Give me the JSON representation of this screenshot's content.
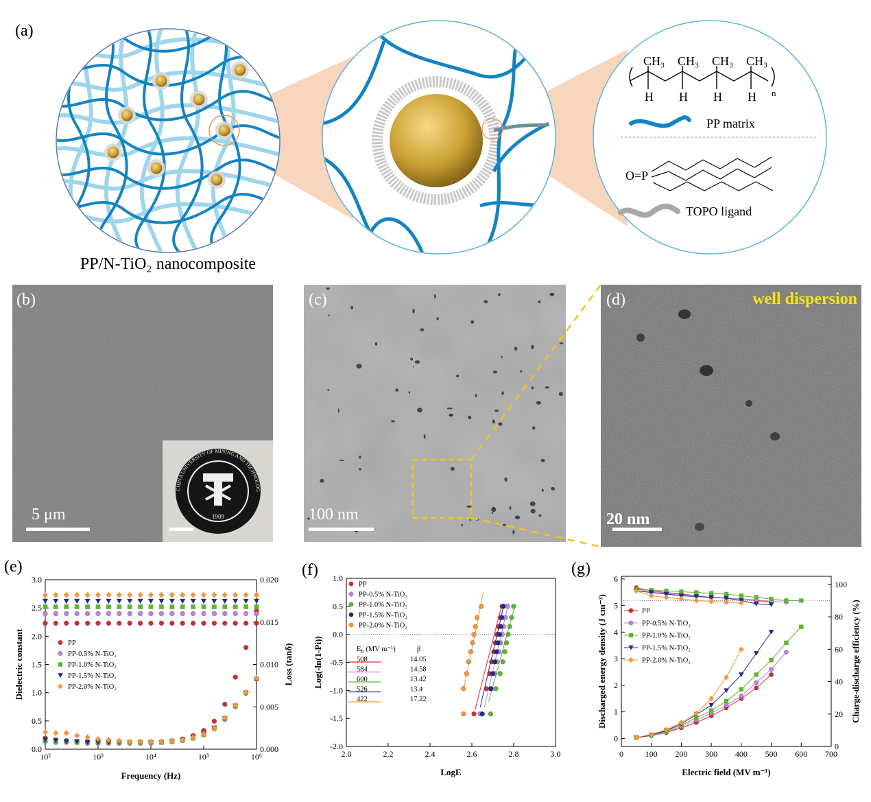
{
  "figure": {
    "a": {
      "label": "(a)",
      "caption": "PP/N-TiO₂ nanocomposite",
      "methyl": [
        "CH₃",
        "CH₃",
        "CH₃",
        "CH₃"
      ],
      "hydrogen": [
        "H",
        "H",
        "H",
        "H"
      ],
      "repeat": "n",
      "matrix": "PP matrix",
      "phosphine": "O=P",
      "ligand": "TOPO ligand"
    },
    "b": {
      "label": "(b)",
      "scale": "5 μm",
      "inset_year": "1909",
      "inset_name": "CHINA UNIVERSITY OF MINING AND TECHNOLOGY"
    },
    "c": {
      "label": "(c)",
      "scale": "100 nm"
    },
    "d": {
      "label": "(d)",
      "scale": "20 nm",
      "note": "well dispersion"
    }
  },
  "chart_data": [
    {
      "type": "scatter",
      "label": "(e)",
      "xlabel": "Frequency (Hz)",
      "ylabel": "Dielectric constant",
      "y2label": "Loss (tanδ)",
      "xscale": "log",
      "legend": "center left",
      "x": [
        100,
        158,
        251,
        398,
        631,
        1000,
        1585,
        2512,
        3981,
        6310,
        10000,
        15849,
        25119,
        39811,
        63096,
        100000,
        158489,
        251189,
        398107,
        630957,
        1000000
      ],
      "xlim": [
        100,
        1000000
      ],
      "xticks": [
        {
          "value": 100,
          "label": "10²"
        },
        {
          "value": 1000,
          "label": "10³"
        },
        {
          "value": 10000,
          "label": "10⁴"
        },
        {
          "value": 100000,
          "label": "10⁵"
        },
        {
          "value": 1000000,
          "label": "10⁶"
        }
      ],
      "ylim": [
        0,
        3
      ],
      "yticks": [
        {
          "value": 0,
          "label": "0.0"
        },
        0.5,
        {
          "value": 1,
          "label": "1.0"
        },
        1.5,
        {
          "value": 2,
          "label": "2.0"
        },
        2.5,
        {
          "value": 3,
          "label": "3.0"
        }
      ],
      "y2lim": [
        0,
        0.02
      ],
      "y2ticks": [
        {
          "value": 0,
          "label": "0.000"
        },
        0.005,
        {
          "value": 0.01,
          "label": "0.010"
        },
        0.015,
        {
          "value": 0.02,
          "label": "0.020"
        }
      ],
      "series": [
        {
          "name": "PP",
          "color": "#d92b2b",
          "marker": "circle",
          "values": [
            2.23,
            2.23,
            2.23,
            2.23,
            2.23,
            2.23,
            2.23,
            2.23,
            2.23,
            2.23,
            2.23,
            2.23,
            2.23,
            2.23,
            2.23,
            2.23,
            2.23,
            2.23,
            2.23,
            2.23,
            2.23
          ],
          "y2_values": [
            0.0013,
            0.0011,
            0.001,
            0.0009,
            0.0009,
            0.0008,
            0.0008,
            0.0008,
            0.0008,
            0.0008,
            0.0008,
            0.0009,
            0.001,
            0.0012,
            0.0016,
            0.0022,
            0.0033,
            0.0053,
            0.0085,
            0.012,
            0.0163
          ]
        },
        {
          "name": "PP-0.5% N-TiO₂",
          "color": "#c27ee8",
          "marker": "circle",
          "values": [
            2.4,
            2.4,
            2.4,
            2.4,
            2.4,
            2.4,
            2.4,
            2.4,
            2.4,
            2.4,
            2.4,
            2.4,
            2.4,
            2.4,
            2.4,
            2.4,
            2.4,
            2.4,
            2.4,
            2.4,
            2.4
          ],
          "y2_values": [
            0.0009,
            0.0008,
            0.0008,
            0.0008,
            0.0007,
            0.0007,
            0.0007,
            0.0007,
            0.0007,
            0.0007,
            0.0007,
            0.0008,
            0.0009,
            0.001,
            0.0013,
            0.0017,
            0.0024,
            0.0035,
            0.005,
            0.0066,
            0.0083
          ]
        },
        {
          "name": "PP-1.0% N-TiO₂",
          "color": "#5fb530",
          "marker": "square",
          "values": [
            2.52,
            2.52,
            2.52,
            2.52,
            2.52,
            2.52,
            2.52,
            2.52,
            2.52,
            2.52,
            2.52,
            2.52,
            2.52,
            2.52,
            2.52,
            2.52,
            2.52,
            2.52,
            2.52,
            2.52,
            2.52
          ],
          "y2_values": [
            0.001,
            0.0009,
            0.0009,
            0.0008,
            0.0008,
            0.0008,
            0.0008,
            0.0008,
            0.0008,
            0.0008,
            0.0008,
            0.0008,
            0.0009,
            0.0011,
            0.0013,
            0.0017,
            0.0025,
            0.0036,
            0.0051,
            0.0067,
            0.0083
          ]
        },
        {
          "name": "PP-1.5% N-TiO₂",
          "color": "#1c2c8c",
          "marker": "triangle-down",
          "values": [
            2.62,
            2.62,
            2.62,
            2.62,
            2.62,
            2.62,
            2.62,
            2.62,
            2.62,
            2.62,
            2.62,
            2.62,
            2.62,
            2.62,
            2.62,
            2.62,
            2.62,
            2.62,
            2.62,
            2.62,
            2.62
          ],
          "y2_values": [
            0.0011,
            0.001,
            0.0009,
            0.0009,
            0.0008,
            0.0008,
            0.0008,
            0.0008,
            0.0008,
            0.0008,
            0.0008,
            0.0008,
            0.0009,
            0.0011,
            0.0014,
            0.0018,
            0.0025,
            0.0036,
            0.0051,
            0.0066,
            0.0082
          ]
        },
        {
          "name": "PP-2.0% N-TiO₂",
          "color": "#f5963a",
          "marker": "diamond",
          "values": [
            2.73,
            2.73,
            2.73,
            2.73,
            2.73,
            2.73,
            2.73,
            2.73,
            2.73,
            2.73,
            2.73,
            2.73,
            2.73,
            2.73,
            2.73,
            2.73,
            2.73,
            2.73,
            2.73,
            2.73,
            2.73
          ],
          "y2_values": [
            0.002,
            0.0019,
            0.0019,
            0.0016,
            0.0014,
            0.0012,
            0.0011,
            0.001,
            0.0009,
            0.0009,
            0.0009,
            0.0009,
            0.001,
            0.0011,
            0.0014,
            0.0018,
            0.0025,
            0.0037,
            0.0052,
            0.0067,
            0.0084
          ]
        }
      ]
    },
    {
      "type": "scatter",
      "label": "(f)",
      "xlabel": "LogE",
      "ylabel": "Log(-ln(1-Pi))",
      "legend": "upper left",
      "reference_y": 0,
      "xlim": [
        2,
        3
      ],
      "xticks": [
        {
          "value": 2,
          "label": "2.0"
        },
        2.2,
        2.4,
        2.6,
        2.8,
        {
          "value": 3,
          "label": "3.0"
        }
      ],
      "ylim": [
        -2,
        1
      ],
      "yticks": [
        {
          "value": -2,
          "label": "-2.0"
        },
        -1.5,
        {
          "value": -1,
          "label": "-1.0"
        },
        -0.5,
        {
          "value": 0,
          "label": "0.0"
        },
        0.5,
        {
          "value": 1,
          "label": "1.0"
        }
      ],
      "eb_header": {
        "symbol": "E",
        "subscript": "b",
        "unit": "(MV m⁻¹)"
      },
      "beta_header": "β",
      "series": [
        {
          "name": "PP",
          "color": "#d92b2b",
          "marker": "circle",
          "x": [
            2.61,
            2.67,
            2.685,
            2.695,
            2.705,
            2.712,
            2.72,
            2.727,
            2.735,
            2.745
          ],
          "values": [
            -1.42,
            -0.97,
            -0.7,
            -0.49,
            -0.31,
            -0.15,
            0.0,
            0.14,
            0.3,
            0.5
          ],
          "fit_x": [
            2.615,
            2.745
          ],
          "fit_y": [
            -1.35,
            0.55
          ],
          "eb": 508,
          "beta": 14.05
        },
        {
          "name": "PP-0.5% N-TiO₂",
          "color": "#c27ee8",
          "marker": "circle",
          "x": [
            2.64,
            2.695,
            2.71,
            2.72,
            2.73,
            2.738,
            2.745,
            2.752,
            2.76,
            2.77
          ],
          "values": [
            -1.42,
            -0.97,
            -0.7,
            -0.49,
            -0.31,
            -0.15,
            0.0,
            0.14,
            0.3,
            0.5
          ],
          "fit_x": [
            2.66,
            2.775
          ],
          "fit_y": [
            -1.3,
            0.55
          ],
          "eb": 584,
          "beta": 14.58
        },
        {
          "name": "PP-1.0% N-TiO₂",
          "color": "#5fb530",
          "marker": "circle",
          "x": [
            2.69,
            2.715,
            2.735,
            2.748,
            2.758,
            2.766,
            2.774,
            2.781,
            2.79,
            2.8
          ],
          "values": [
            -1.42,
            -0.97,
            -0.7,
            -0.49,
            -0.31,
            -0.15,
            0.0,
            0.14,
            0.3,
            0.5
          ],
          "fit_x": [
            2.68,
            2.805
          ],
          "fit_y": [
            -1.2,
            0.5
          ],
          "eb": 600,
          "beta": 13.42
        },
        {
          "name": "PP-1.5% N-TiO₂",
          "color": "#1c2c8c",
          "marker": "circle",
          "x": [
            2.65,
            2.69,
            2.7,
            2.71,
            2.718,
            2.725,
            2.732,
            2.738,
            2.744,
            2.75
          ],
          "values": [
            -1.42,
            -0.97,
            -0.7,
            -0.49,
            -0.31,
            -0.15,
            0.0,
            0.14,
            0.3,
            0.5
          ],
          "fit_x": [
            2.64,
            2.755
          ],
          "fit_y": [
            -1.3,
            0.55
          ],
          "eb": 526,
          "beta": 13.4
        },
        {
          "name": "PP-2.0% N-TiO₂",
          "color": "#f5963a",
          "marker": "circle",
          "x": [
            2.56,
            2.56,
            2.575,
            2.585,
            2.595,
            2.603,
            2.61,
            2.617,
            2.625,
            2.645
          ],
          "values": [
            -1.42,
            -0.97,
            -0.7,
            -0.49,
            -0.31,
            -0.15,
            0.0,
            0.14,
            0.3,
            0.5
          ],
          "fit_x": [
            2.56,
            2.655
          ],
          "fit_y": [
            -1.0,
            0.75
          ],
          "eb": 422,
          "beta": 17.22
        }
      ]
    },
    {
      "type": "line",
      "label": "(g)",
      "xlabel": "Electric field (MV m⁻¹)",
      "ylabel": "Discharged energy density (J cm⁻³)",
      "y2label": "Charge-discharge efficiency (%)",
      "legend": "upper left",
      "reference_y2": 90,
      "xlim": [
        0,
        700
      ],
      "xticks": [
        0,
        100,
        200,
        300,
        400,
        500,
        600,
        700
      ],
      "ylim": [
        -0.3,
        6.1
      ],
      "yticks": [
        0,
        1,
        2,
        3,
        4,
        5,
        6
      ],
      "y2lim": [
        0,
        105
      ],
      "y2ticks": [
        0,
        20,
        40,
        60,
        80,
        100
      ],
      "series": [
        {
          "name": "PP",
          "color": "#d92b2b",
          "marker": "circle",
          "x": [
            50,
            100,
            150,
            200,
            250,
            300,
            350,
            400,
            450,
            500
          ],
          "values": [
            0.03,
            0.1,
            0.22,
            0.4,
            0.6,
            0.85,
            1.15,
            1.5,
            1.9,
            2.4
          ],
          "y2_values": [
            98,
            96,
            95,
            94,
            93,
            92,
            91.5,
            91,
            90,
            89
          ]
        },
        {
          "name": "PP-0.5% N-TiO₂",
          "color": "#c27ee8",
          "marker": "circle",
          "x": [
            50,
            100,
            150,
            200,
            250,
            300,
            350,
            400,
            450,
            500,
            550
          ],
          "values": [
            0.03,
            0.1,
            0.24,
            0.45,
            0.7,
            0.95,
            1.25,
            1.6,
            2.1,
            2.6,
            3.25
          ],
          "y2_values": [
            97,
            95.5,
            94.5,
            93.5,
            93,
            92,
            91.5,
            91,
            90.5,
            89.5,
            89
          ]
        },
        {
          "name": "PP-1.0% N-TiO₂",
          "color": "#5fb530",
          "marker": "square",
          "x": [
            50,
            100,
            150,
            200,
            250,
            300,
            350,
            400,
            450,
            500,
            550,
            600
          ],
          "values": [
            0.03,
            0.12,
            0.27,
            0.5,
            0.78,
            1.05,
            1.4,
            1.85,
            2.4,
            2.95,
            3.6,
            4.2
          ],
          "y2_values": [
            97,
            96.5,
            96,
            95.5,
            95,
            94.5,
            94,
            93,
            92,
            91,
            90,
            90
          ]
        },
        {
          "name": "PP-1.5% N-TiO₂",
          "color": "#1c2c8c",
          "marker": "triangle-down",
          "x": [
            50,
            100,
            150,
            200,
            250,
            300,
            350,
            400,
            450,
            500
          ],
          "values": [
            0.03,
            0.13,
            0.3,
            0.55,
            0.9,
            1.25,
            1.8,
            2.4,
            3.2,
            4.0
          ],
          "y2_values": [
            96,
            95,
            94,
            93,
            92.5,
            92,
            91.5,
            90,
            88,
            87.5
          ]
        },
        {
          "name": "PP-2.0% N-TiO₂",
          "color": "#f5963a",
          "marker": "diamond",
          "x": [
            50,
            100,
            150,
            200,
            250,
            300,
            350,
            400
          ],
          "values": [
            0.04,
            0.15,
            0.33,
            0.6,
            0.95,
            1.5,
            2.3,
            3.35
          ],
          "y2_values": [
            96,
            93,
            92,
            91,
            90,
            89.5,
            89,
            88.5
          ]
        }
      ]
    }
  ]
}
